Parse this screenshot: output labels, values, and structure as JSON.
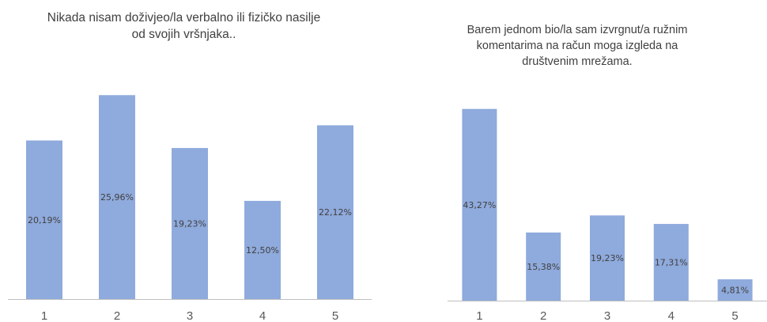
{
  "chart_data": [
    {
      "type": "bar",
      "title_lines": [
        "Nikada nisam doživjeo/la verbalno ili fizičko nasilje",
        "od svojih vršnjaka.."
      ],
      "categories": [
        "1",
        "2",
        "3",
        "4",
        "5"
      ],
      "values": [
        20.19,
        25.96,
        19.23,
        12.5,
        22.12
      ],
      "data_labels": [
        "20,19%",
        "25,96%",
        "19,23%",
        "12,50%",
        "22,12%"
      ],
      "bar_color": "#8faadc",
      "ylim": [
        0,
        28
      ],
      "grid": false,
      "legend": "none"
    },
    {
      "type": "bar",
      "title_lines": [
        "Barem jednom bio/la sam izvrgnut/a ružnim",
        "komentarima na račun moga izgleda na",
        "društvenim mrežama."
      ],
      "categories": [
        "1",
        "2",
        "3",
        "4",
        "5"
      ],
      "values": [
        43.27,
        15.38,
        19.23,
        17.31,
        4.81
      ],
      "data_labels": [
        "43,27%",
        "15,38%",
        "19,23%",
        "17,31%",
        "4,81%"
      ],
      "bar_color": "#8faadc",
      "ylim": [
        0,
        50
      ],
      "grid": false,
      "legend": "none"
    }
  ]
}
